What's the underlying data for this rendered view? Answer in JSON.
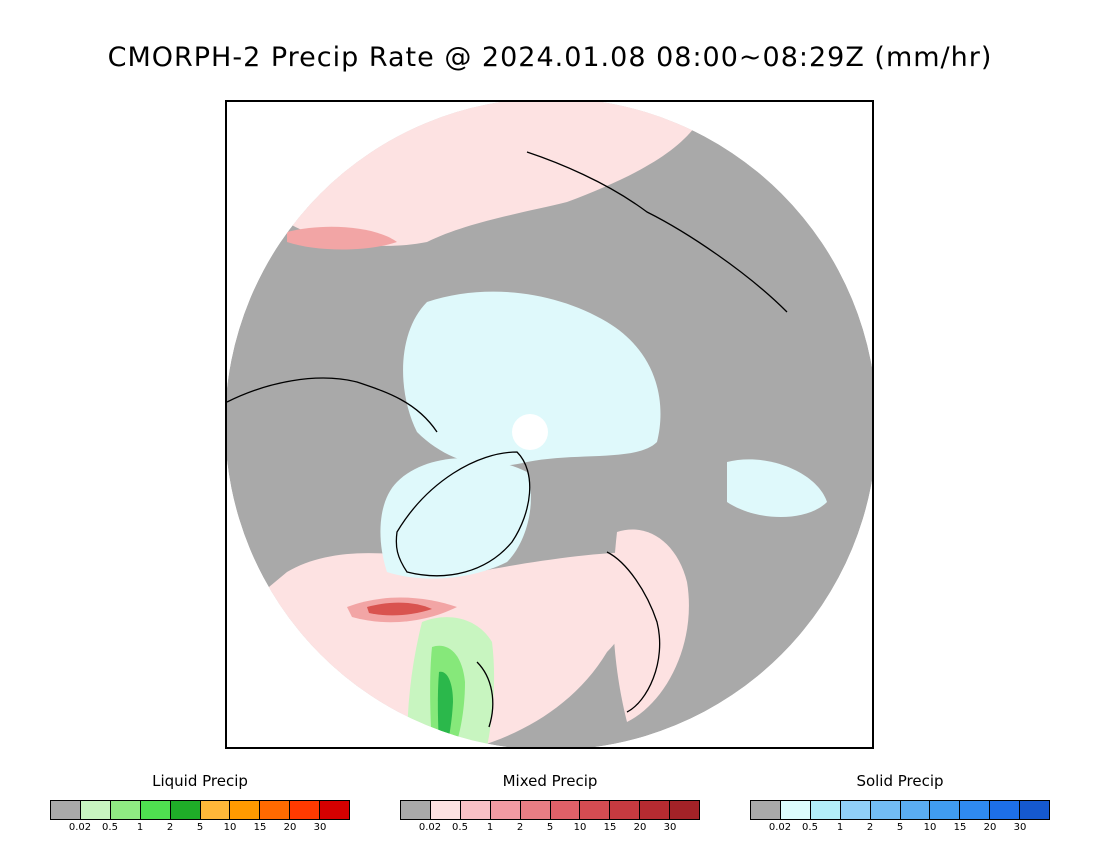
{
  "title": "CMORPH-2 Precip Rate @ 2024.01.08 08:00~08:29Z (mm/hr)",
  "map": {
    "projection": "polar stereographic (north pole)",
    "colors": {
      "no_precip": "#a9a9a9",
      "outside": "#ffffff",
      "coastline": "#000000",
      "mixed_light": "#fde2e2",
      "mixed_medium": "#f2a5a5",
      "mixed_heavy": "#d9534f",
      "solid_light": "#dff9fb",
      "liquid_light": "#c8f5c0",
      "liquid_medium": "#86e87a",
      "liquid_heavy": "#2bb84b"
    }
  },
  "legends": [
    {
      "title": "Liquid Precip",
      "colors": [
        "#a9a9a9",
        "#c8f5c0",
        "#8fea82",
        "#4fe050",
        "#1fac28",
        "#ffb739",
        "#ff9a00",
        "#ff6a00",
        "#ff3a00",
        "#d60000"
      ],
      "ticks": [
        "0.02",
        "0.5",
        "1",
        "2",
        "5",
        "10",
        "15",
        "20",
        "30"
      ]
    },
    {
      "title": "Mixed Precip",
      "colors": [
        "#a9a9a9",
        "#fde2e2",
        "#f9c0c5",
        "#f29ba3",
        "#e97d84",
        "#e06068",
        "#d44c52",
        "#c63a40",
        "#b62b31",
        "#a32227"
      ],
      "ticks": [
        "0.02",
        "0.5",
        "1",
        "2",
        "5",
        "10",
        "15",
        "20",
        "30"
      ]
    },
    {
      "title": "Solid Precip",
      "colors": [
        "#a9a9a9",
        "#ddfdfd",
        "#b2effa",
        "#90d0f8",
        "#72bcf4",
        "#5aacf2",
        "#409cf0",
        "#2f8af0",
        "#1d6fe8",
        "#1559d0"
      ],
      "ticks": [
        "0.02",
        "0.5",
        "1",
        "2",
        "5",
        "10",
        "15",
        "20",
        "30"
      ]
    }
  ]
}
